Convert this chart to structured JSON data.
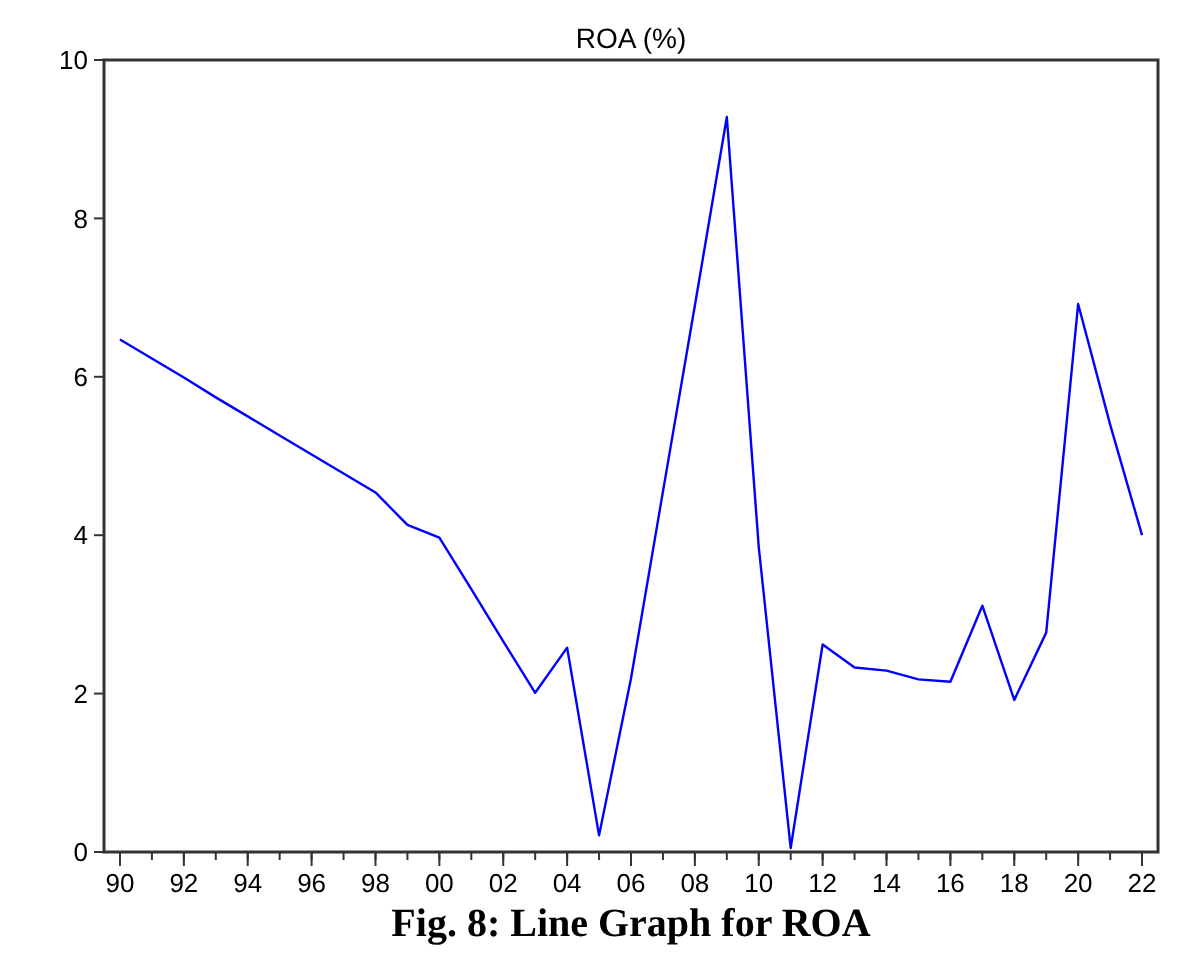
{
  "chart_data": {
    "type": "line",
    "title": "ROA (%)",
    "annotations": [
      "Fig. 8: Line Graph for ROA"
    ],
    "x": [
      1990,
      1991,
      1992,
      1993,
      1994,
      1995,
      1996,
      1997,
      1998,
      1999,
      2000,
      2001,
      2002,
      2003,
      2004,
      2005,
      2006,
      2007,
      2008,
      2009,
      2010,
      2011,
      2012,
      2013,
      2014,
      2015,
      2016,
      2017,
      2018,
      2019,
      2020,
      2021,
      2022
    ],
    "series": [
      {
        "color": "#0000ff",
        "values": [
          6.47,
          6.23,
          5.99,
          5.74,
          5.5,
          5.26,
          5.02,
          4.78,
          4.54,
          4.13,
          3.97,
          3.32,
          2.66,
          2.01,
          2.58,
          0.21,
          2.19,
          4.55,
          6.9,
          9.28,
          3.85,
          0.05,
          2.62,
          2.33,
          2.29,
          2.18,
          2.15,
          3.11,
          1.92,
          2.77,
          6.92,
          5.4,
          4.0
        ]
      }
    ],
    "xlim": [
      1989.5,
      2022.5
    ],
    "xticks": [
      {
        "value": 1990,
        "label": "90"
      },
      {
        "value": 1992,
        "label": "92"
      },
      {
        "value": 1994,
        "label": "94"
      },
      {
        "value": 1996,
        "label": "96"
      },
      {
        "value": 1998,
        "label": "98"
      },
      {
        "value": 2000,
        "label": "00"
      },
      {
        "value": 2002,
        "label": "02"
      },
      {
        "value": 2004,
        "label": "04"
      },
      {
        "value": 2006,
        "label": "06"
      },
      {
        "value": 2008,
        "label": "08"
      },
      {
        "value": 2010,
        "label": "10"
      },
      {
        "value": 2012,
        "label": "12"
      },
      {
        "value": 2014,
        "label": "14"
      },
      {
        "value": 2016,
        "label": "16"
      },
      {
        "value": 2018,
        "label": "18"
      },
      {
        "value": 2020,
        "label": "20"
      },
      {
        "value": 2022,
        "label": "22"
      }
    ],
    "ylim": [
      0,
      10
    ],
    "yticks": [
      0,
      2,
      4,
      6,
      8,
      10
    ],
    "grid": false,
    "marker": "none",
    "line_style": "solid"
  }
}
